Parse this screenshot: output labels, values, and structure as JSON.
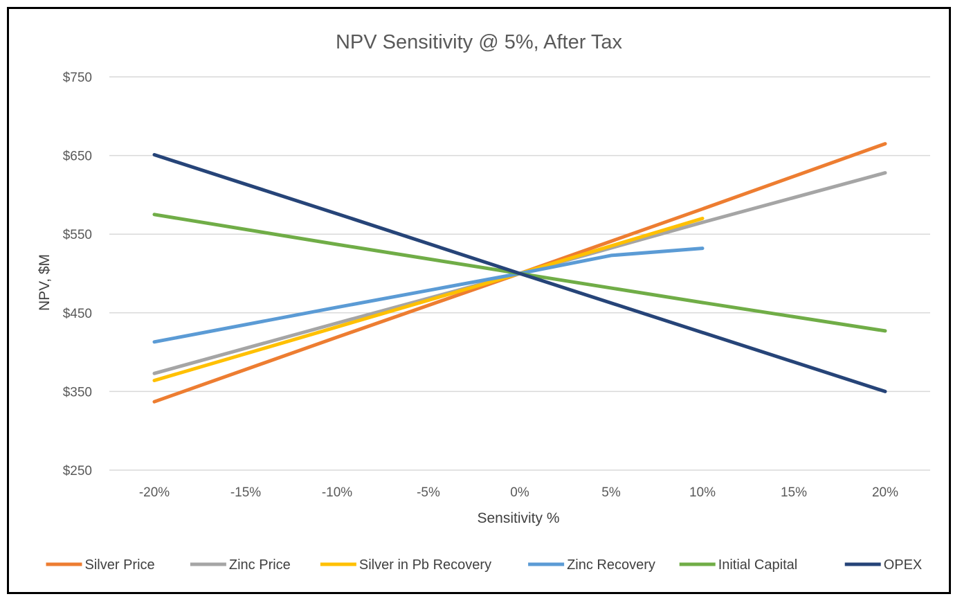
{
  "chart_data": {
    "type": "line",
    "title": "NPV Sensitivity @ 5%, After Tax",
    "xlabel": "Sensitivity %",
    "ylabel": "NPV, $M",
    "x": [
      -20,
      -15,
      -10,
      -5,
      0,
      5,
      10,
      15,
      20
    ],
    "x_tick_labels": [
      "-20%",
      "-15%",
      "-10%",
      "-5%",
      "0%",
      "5%",
      "10%",
      "15%",
      "20%"
    ],
    "y_tick_labels": [
      "$250",
      "$350",
      "$450",
      "$550",
      "$650",
      "$750"
    ],
    "y_ticks": [
      250,
      350,
      450,
      550,
      650,
      750
    ],
    "ylim": [
      250,
      750
    ],
    "grid": "horizontal",
    "legend_position": "bottom",
    "series": [
      {
        "name": "Silver Price",
        "color": "#ED7D31",
        "points": [
          [
            -20,
            337
          ],
          [
            -10,
            419
          ],
          [
            0,
            500
          ],
          [
            10,
            582
          ],
          [
            20,
            665
          ]
        ]
      },
      {
        "name": "Zinc Price",
        "color": "#A5A5A5",
        "points": [
          [
            -20,
            373
          ],
          [
            -10,
            437
          ],
          [
            0,
            500
          ],
          [
            10,
            565
          ],
          [
            20,
            628
          ]
        ]
      },
      {
        "name": "Silver in Pb Recovery",
        "color": "#FFC000",
        "points": [
          [
            -20,
            364
          ],
          [
            -10,
            432
          ],
          [
            0,
            500
          ],
          [
            5,
            535
          ],
          [
            10,
            570
          ]
        ]
      },
      {
        "name": "Zinc Recovery",
        "color": "#5B9BD5",
        "points": [
          [
            -20,
            413
          ],
          [
            -10,
            457
          ],
          [
            0,
            500
          ],
          [
            5,
            523
          ],
          [
            10,
            532
          ]
        ]
      },
      {
        "name": "Initial Capital",
        "color": "#70AD47",
        "points": [
          [
            -20,
            575
          ],
          [
            -10,
            537
          ],
          [
            0,
            500
          ],
          [
            10,
            463
          ],
          [
            20,
            427
          ]
        ]
      },
      {
        "name": "OPEX",
        "color": "#264478",
        "points": [
          [
            -20,
            651
          ],
          [
            -10,
            576
          ],
          [
            0,
            500
          ],
          [
            10,
            425
          ],
          [
            20,
            350
          ]
        ]
      }
    ]
  }
}
